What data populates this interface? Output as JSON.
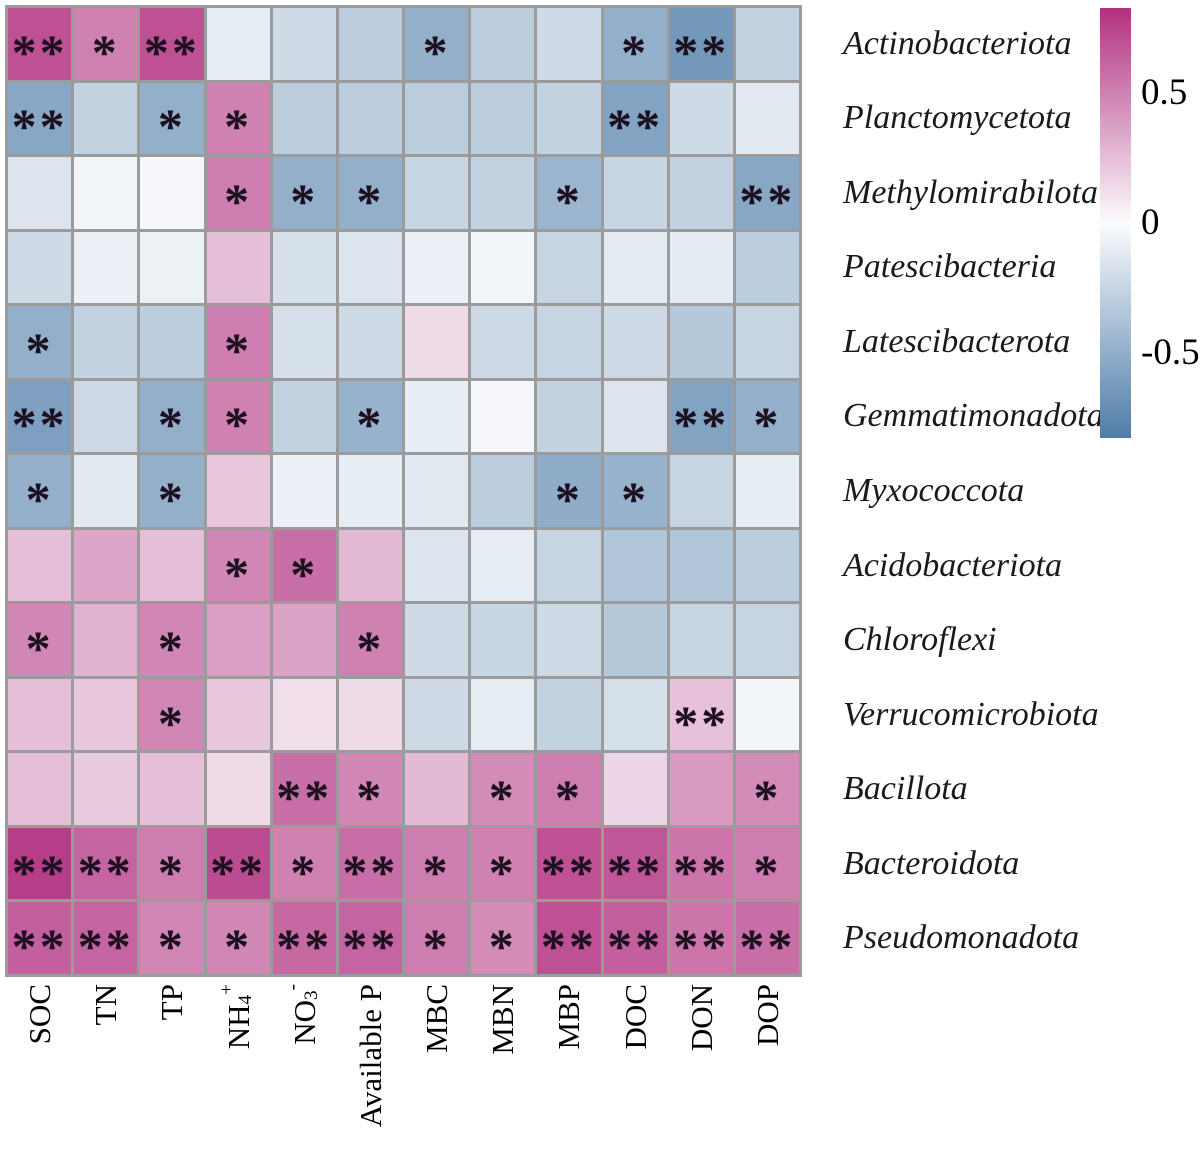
{
  "chart_data": {
    "type": "heatmap",
    "title": "",
    "columns": [
      {
        "text": "SOC"
      },
      {
        "text": "TN"
      },
      {
        "text": "TP"
      },
      {
        "text": "NH4+",
        "parts": [
          {
            "t": "NH"
          },
          {
            "sub": "4"
          },
          {
            "sup": "+"
          }
        ]
      },
      {
        "text": "NO3-",
        "parts": [
          {
            "t": "NO"
          },
          {
            "sub": "3"
          },
          {
            "sup": "-"
          }
        ]
      },
      {
        "text": "Available P"
      },
      {
        "text": "MBC"
      },
      {
        "text": "MBN"
      },
      {
        "text": "MBP"
      },
      {
        "text": "DOC"
      },
      {
        "text": "DON"
      },
      {
        "text": "DOP"
      }
    ],
    "rows": [
      "Actinobacteriota",
      "Planctomycetota",
      "Methylomirabilota",
      "Patescibacteria",
      "Latescibacterota",
      "Gemmatimonadota",
      "Myxococcota",
      "Acidobacteriota",
      "Chloroflexi",
      "Verrucomicrobiota",
      "Bacillota",
      "Bacteroidota",
      "Pseudomonadota"
    ],
    "values": [
      [
        0.7,
        0.5,
        0.7,
        -0.1,
        -0.22,
        -0.3,
        -0.5,
        -0.3,
        -0.22,
        -0.5,
        -0.65,
        -0.27
      ],
      [
        -0.55,
        -0.27,
        -0.5,
        0.5,
        -0.3,
        -0.3,
        -0.3,
        -0.3,
        -0.27,
        -0.58,
        -0.22,
        -0.12
      ],
      [
        -0.15,
        -0.05,
        -0.03,
        0.52,
        -0.5,
        -0.5,
        -0.25,
        -0.27,
        -0.46,
        -0.25,
        -0.27,
        -0.55
      ],
      [
        -0.22,
        -0.08,
        -0.07,
        0.25,
        -0.18,
        -0.15,
        -0.08,
        -0.04,
        -0.25,
        -0.11,
        -0.11,
        -0.3
      ],
      [
        -0.5,
        -0.27,
        -0.3,
        0.52,
        -0.18,
        -0.22,
        0.14,
        -0.22,
        -0.25,
        -0.22,
        -0.33,
        -0.25
      ],
      [
        -0.6,
        -0.22,
        -0.5,
        0.5,
        -0.28,
        -0.48,
        -0.1,
        -0.03,
        -0.27,
        -0.15,
        -0.58,
        -0.5
      ],
      [
        -0.5,
        -0.12,
        -0.5,
        0.22,
        -0.08,
        -0.1,
        -0.12,
        -0.3,
        -0.52,
        -0.48,
        -0.25,
        -0.1
      ],
      [
        0.25,
        0.35,
        0.25,
        0.48,
        0.58,
        0.28,
        -0.15,
        -0.1,
        -0.25,
        -0.35,
        -0.35,
        -0.3
      ],
      [
        0.48,
        0.3,
        0.48,
        0.38,
        0.36,
        0.5,
        -0.22,
        -0.25,
        -0.22,
        -0.33,
        -0.25,
        -0.25
      ],
      [
        0.25,
        0.22,
        0.48,
        0.22,
        0.12,
        0.14,
        -0.22,
        -0.1,
        -0.27,
        -0.18,
        0.24,
        -0.04
      ],
      [
        0.25,
        0.2,
        0.25,
        0.14,
        0.58,
        0.48,
        0.27,
        0.46,
        0.52,
        0.16,
        0.4,
        0.46
      ],
      [
        0.78,
        0.62,
        0.52,
        0.72,
        0.5,
        0.58,
        0.52,
        0.5,
        0.7,
        0.68,
        0.55,
        0.52
      ],
      [
        0.64,
        0.62,
        0.48,
        0.48,
        0.6,
        0.62,
        0.52,
        0.46,
        0.7,
        0.64,
        0.55,
        0.58
      ]
    ],
    "significance": [
      [
        2,
        1,
        2,
        0,
        0,
        0,
        1,
        0,
        0,
        1,
        2,
        0
      ],
      [
        2,
        0,
        1,
        1,
        0,
        0,
        0,
        0,
        0,
        2,
        0,
        0
      ],
      [
        0,
        0,
        0,
        1,
        1,
        1,
        0,
        0,
        1,
        0,
        0,
        2
      ],
      [
        0,
        0,
        0,
        0,
        0,
        0,
        0,
        0,
        0,
        0,
        0,
        0
      ],
      [
        1,
        0,
        0,
        1,
        0,
        0,
        0,
        0,
        0,
        0,
        0,
        0
      ],
      [
        2,
        0,
        1,
        1,
        0,
        1,
        0,
        0,
        0,
        0,
        2,
        1
      ],
      [
        1,
        0,
        1,
        0,
        0,
        0,
        0,
        0,
        1,
        1,
        0,
        0
      ],
      [
        0,
        0,
        0,
        1,
        1,
        0,
        0,
        0,
        0,
        0,
        0,
        0
      ],
      [
        1,
        0,
        1,
        0,
        0,
        1,
        0,
        0,
        0,
        0,
        0,
        0
      ],
      [
        0,
        0,
        1,
        0,
        0,
        0,
        0,
        0,
        0,
        0,
        2,
        0
      ],
      [
        0,
        0,
        0,
        0,
        2,
        1,
        0,
        1,
        1,
        0,
        0,
        1
      ],
      [
        2,
        2,
        1,
        2,
        1,
        2,
        1,
        1,
        2,
        2,
        2,
        1
      ],
      [
        2,
        2,
        1,
        1,
        2,
        2,
        1,
        1,
        2,
        2,
        2,
        2
      ]
    ],
    "significance_symbols": {
      "0": "",
      "1": "*",
      "2": "**"
    },
    "color_scale": {
      "limit": 0.83,
      "positive_end": "#b23180",
      "zero": "#fbfcfd",
      "negative_end": "#4e7ca8"
    },
    "grid_line_color": "#9b9b9b",
    "colorbar": {
      "ticks": [
        {
          "label": "0.5",
          "value": 0.5
        },
        {
          "label": "0",
          "value": 0.0
        },
        {
          "label": "-0.5",
          "value": -0.5
        }
      ]
    },
    "legend_position": "right",
    "grid": true
  }
}
